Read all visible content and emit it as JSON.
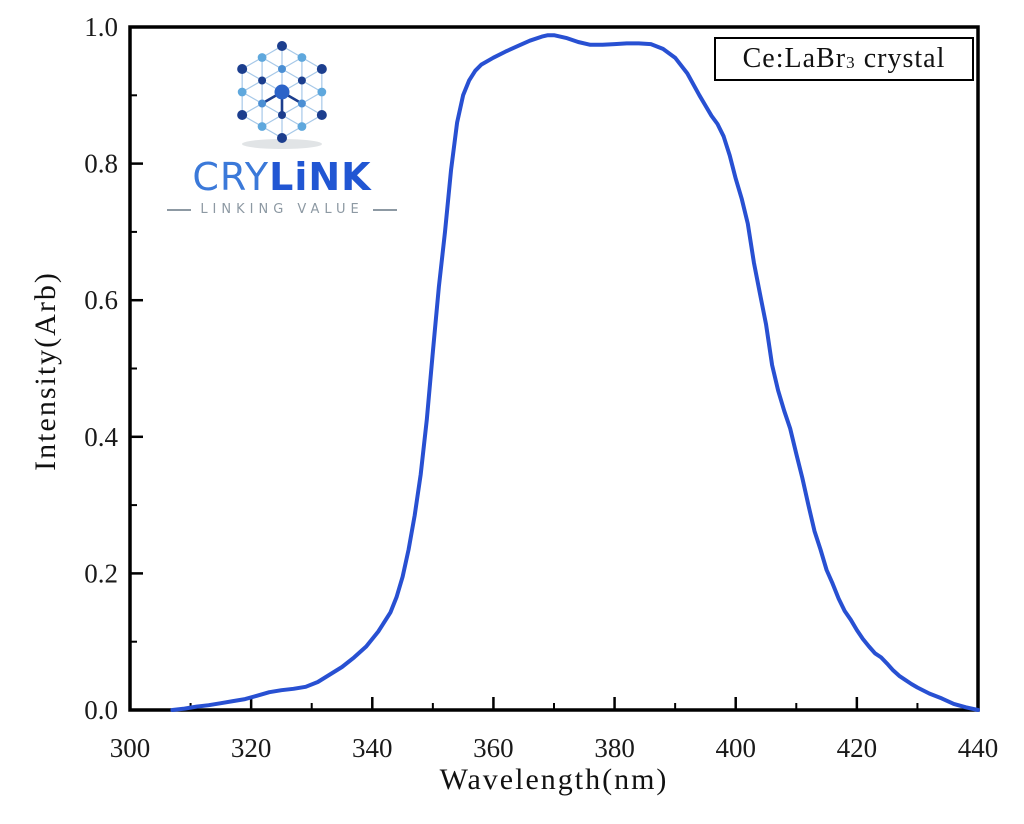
{
  "page": {
    "background": "#ffffff"
  },
  "logo": {
    "brand_part1": "CRY",
    "brand_part2": "LiNK",
    "tagline": "LINKING VALUE",
    "colors": {
      "brand_light": "#3b79d9",
      "brand_bold": "#2156d3",
      "tagline": "#8d99a3",
      "node_dark": "#1c3e8e",
      "node_light": "#5fa8dd",
      "node_mid": "#4b8fd4",
      "node_center": "#2c63c8",
      "mesh_line": "#a6c8e8",
      "shadow": "#c9cdd1"
    }
  },
  "legend": {
    "prefix": "Ce:LaBr",
    "subscript": "3",
    "suffix": " crystal"
  },
  "chart_data": {
    "type": "line",
    "title": "",
    "xlabel": "Wavelength(nm)",
    "ylabel": "Intensity(Arb)",
    "xlim": [
      300,
      440
    ],
    "ylim": [
      0.0,
      1.0
    ],
    "x_ticks": [
      300,
      320,
      340,
      360,
      380,
      400,
      420,
      440
    ],
    "x_minor_ticks": [
      310,
      330,
      350,
      370,
      390,
      410,
      430
    ],
    "y_ticks": [
      0.0,
      0.2,
      0.4,
      0.6,
      0.8,
      1.0
    ],
    "y_minor_ticks": [
      0.1,
      0.3,
      0.5,
      0.7,
      0.9
    ],
    "grid": false,
    "legend_position": "top-right",
    "line_color": "#2850d2",
    "axis_color": "#000000",
    "tick_label_color": "#1a1a1a",
    "series": [
      {
        "name": "Ce:LaBr3 crystal",
        "x": [
          307,
          309,
          311,
          313,
          315,
          317,
          319,
          321,
          323,
          325,
          327,
          329,
          331,
          333,
          335,
          337,
          339,
          341,
          343,
          344,
          345,
          346,
          347,
          348,
          349,
          350,
          351,
          352,
          353,
          354,
          355,
          356,
          357,
          358,
          360,
          362,
          364,
          366,
          368,
          369,
          370,
          372,
          374,
          376,
          378,
          380,
          382,
          384,
          386,
          388,
          390,
          392,
          394,
          395,
          396,
          397,
          398,
          399,
          400,
          401,
          402,
          403,
          404,
          405,
          406,
          407,
          408,
          409,
          410,
          411,
          412,
          413,
          414,
          415,
          416,
          417,
          418,
          419,
          420,
          421,
          422,
          423,
          424,
          425,
          426,
          427,
          428,
          429,
          430,
          432,
          434,
          436,
          438,
          440
        ],
        "y": [
          0,
          0.002,
          0.005,
          0.007,
          0.01,
          0.013,
          0.016,
          0.021,
          0.026,
          0.029,
          0.031,
          0.034,
          0.041,
          0.052,
          0.063,
          0.077,
          0.093,
          0.115,
          0.143,
          0.165,
          0.195,
          0.235,
          0.285,
          0.345,
          0.425,
          0.525,
          0.62,
          0.7,
          0.79,
          0.86,
          0.9,
          0.922,
          0.936,
          0.945,
          0.955,
          0.964,
          0.972,
          0.98,
          0.986,
          0.988,
          0.988,
          0.984,
          0.978,
          0.974,
          0.974,
          0.975,
          0.976,
          0.976,
          0.975,
          0.968,
          0.955,
          0.932,
          0.9,
          0.885,
          0.87,
          0.858,
          0.84,
          0.812,
          0.778,
          0.748,
          0.712,
          0.655,
          0.61,
          0.565,
          0.505,
          0.468,
          0.438,
          0.412,
          0.375,
          0.34,
          0.3,
          0.262,
          0.235,
          0.205,
          0.185,
          0.163,
          0.145,
          0.132,
          0.117,
          0.104,
          0.093,
          0.083,
          0.077,
          0.068,
          0.058,
          0.05,
          0.044,
          0.038,
          0.033,
          0.024,
          0.017,
          0.009,
          0.004,
          0
        ]
      }
    ]
  }
}
